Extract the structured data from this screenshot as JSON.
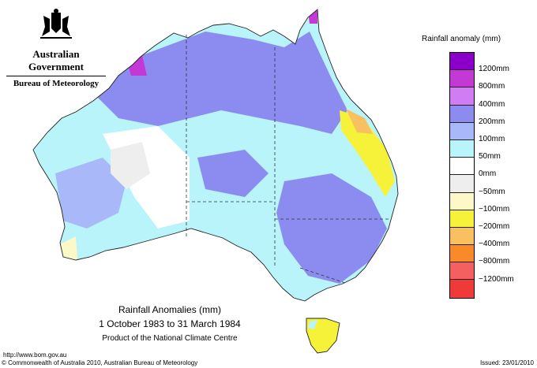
{
  "header": {
    "government": "Australian Government",
    "bureau": "Bureau of Meteorology"
  },
  "legend": {
    "title": "Rainfall anomaly (mm)",
    "colors": [
      "#8b00c8",
      "#c438d6",
      "#d07cf2",
      "#8c8cf0",
      "#a8b8f8",
      "#b8f4fa",
      "#ffffff",
      "#eeeeee",
      "#fcf8c8",
      "#f6f23a",
      "#f8c060",
      "#f88a2a",
      "#f46060",
      "#f03a3a"
    ],
    "labels": [
      "1200mm",
      "800mm",
      "400mm",
      "200mm",
      "100mm",
      "50mm",
      "0mm",
      "−50mm",
      "−100mm",
      "−200mm",
      "−400mm",
      "−800mm",
      "−1200mm"
    ]
  },
  "caption": {
    "title": "Rainfall Anomalies (mm)",
    "period": "1 October 1983 to 31 March 1984",
    "product": "Product of the National Climate Centre"
  },
  "footer": {
    "url": "http://www.bom.gov.au",
    "copyright": "© Commonwealth of Australia 2010, Australian Bureau of Meteorology",
    "issued": "Issued: 23/01/2010"
  }
}
